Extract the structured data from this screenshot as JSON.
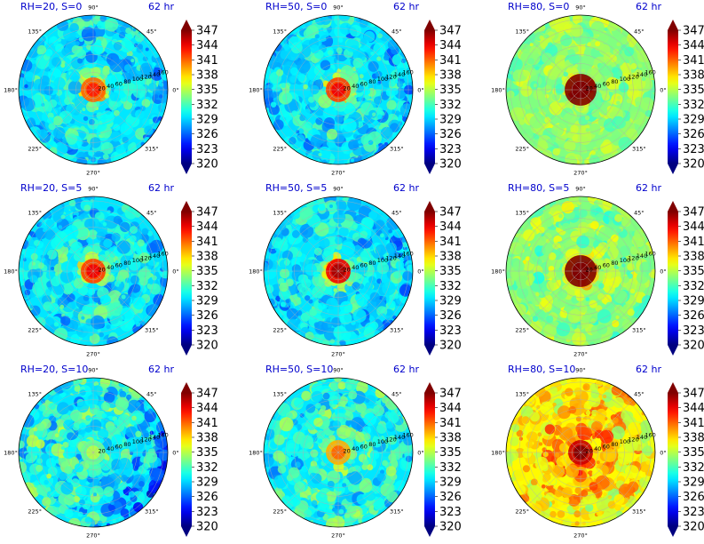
{
  "figure": {
    "colorbar": {
      "min": 320,
      "max": 347,
      "ticks": [
        "347",
        "344",
        "341",
        "338",
        "335",
        "332",
        "329",
        "326",
        "323",
        "320"
      ],
      "colormap": "jet",
      "extend": "both"
    },
    "polar": {
      "angle_labels": [
        "90°",
        "45°",
        "0°",
        "315°",
        "270°",
        "225°",
        "180°",
        "135°"
      ],
      "radial_labels": [
        "20",
        "40",
        "60",
        "80",
        "100",
        "120",
        "140",
        "160"
      ]
    }
  },
  "chart_data": [
    {
      "type": "heatmap",
      "title": "RH=20, S=0",
      "time": "62 hr",
      "core_value": 341,
      "field": "ring-core",
      "noise": 0.55
    },
    {
      "type": "heatmap",
      "title": "RH=50, S=0",
      "time": "62 hr",
      "core_value": 342,
      "field": "ring-core",
      "noise": 0.55
    },
    {
      "type": "heatmap",
      "title": "RH=80, S=0",
      "time": "62 hr",
      "core_value": 347,
      "field": "hot-core",
      "noise": 0.35
    },
    {
      "type": "heatmap",
      "title": "RH=20, S=5",
      "time": "62 hr",
      "core_value": 342,
      "field": "ring-core",
      "noise": 0.55
    },
    {
      "type": "heatmap",
      "title": "RH=50, S=5",
      "time": "62 hr",
      "core_value": 344,
      "field": "ring-core",
      "noise": 0.55
    },
    {
      "type": "heatmap",
      "title": "RH=80, S=5",
      "time": "62 hr",
      "core_value": 347,
      "field": "hot-core",
      "noise": 0.45
    },
    {
      "type": "heatmap",
      "title": "RH=20, S=10",
      "time": "62 hr",
      "core_value": 333,
      "field": "dry-sheared",
      "noise": 0.7
    },
    {
      "type": "heatmap",
      "title": "RH=50, S=10",
      "time": "62 hr",
      "core_value": 339,
      "field": "sheared",
      "noise": 0.6
    },
    {
      "type": "heatmap",
      "title": "RH=80, S=10",
      "time": "62 hr",
      "core_value": 345,
      "field": "moist-sheared",
      "noise": 0.6
    }
  ]
}
